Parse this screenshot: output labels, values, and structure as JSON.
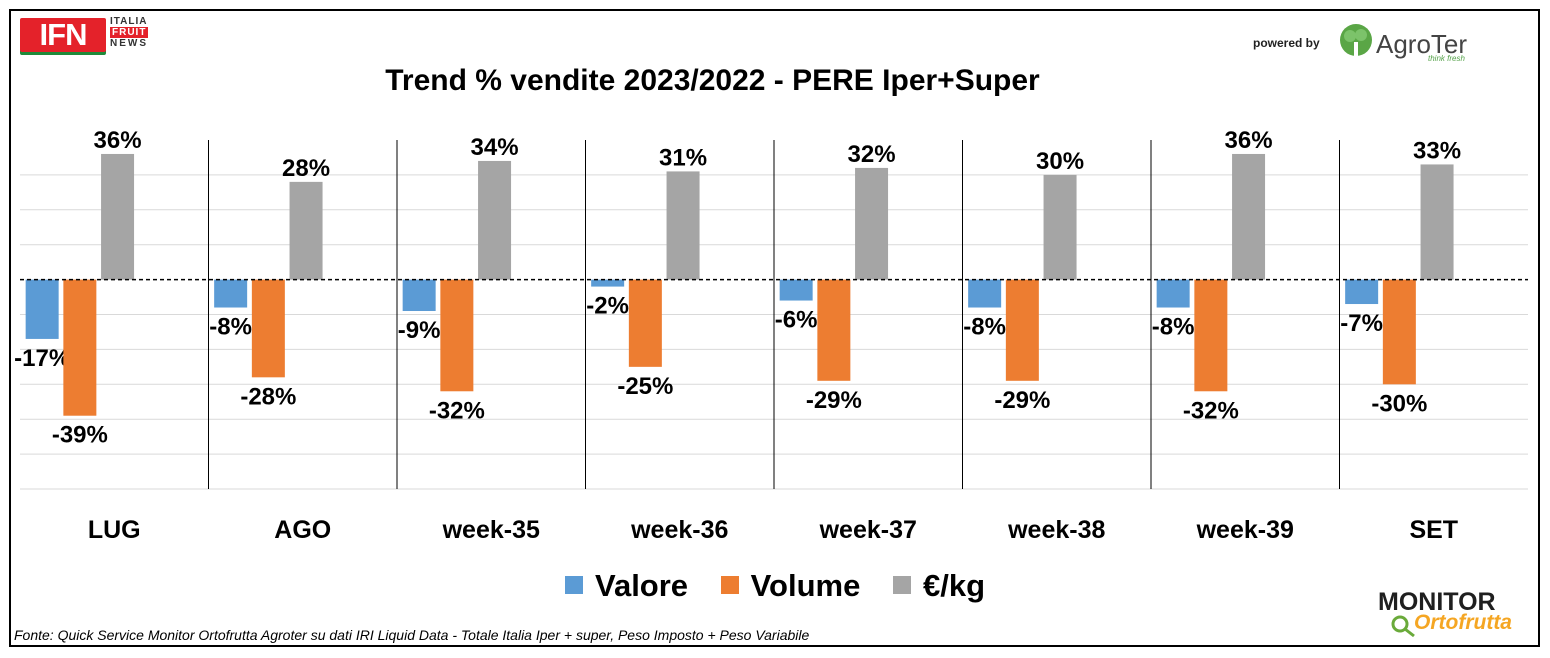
{
  "branding": {
    "ifn_mark": "IFN",
    "ifn_words": [
      "ITALIA",
      "FRUIT",
      "NEWS"
    ],
    "powered_by": "powered by",
    "agroter_name": "AgroTer",
    "agroter_tagline": "think fresh",
    "monitor_top": "MONITOR",
    "monitor_bottom": "Ortofrutta"
  },
  "footer": "Fonte: Quick Service Monitor Ortofrutta Agroter su dati IRI Liquid Data - Totale Italia Iper + super, Peso Imposto + Peso Variabile",
  "colors": {
    "valore": "#5b9bd5",
    "volume": "#ed7d31",
    "euro_kg": "#a5a5a5"
  },
  "chart_data": {
    "type": "bar",
    "title": "Trend % vendite 2023/2022 - PERE Iper+Super",
    "categories": [
      "LUG",
      "AGO",
      "week-35",
      "week-36",
      "week-37",
      "week-38",
      "week-39",
      "SET"
    ],
    "series": [
      {
        "name": "Valore",
        "values": [
          -17,
          -8,
          -9,
          -2,
          -6,
          -8,
          -8,
          -7
        ]
      },
      {
        "name": "Volume",
        "values": [
          -39,
          -28,
          -32,
          -25,
          -29,
          -29,
          -32,
          -30
        ]
      },
      {
        "name": "€/kg",
        "values": [
          36,
          28,
          34,
          31,
          32,
          30,
          36,
          33
        ]
      }
    ],
    "data_labels": [
      [
        "-17%",
        "-8%",
        "-9%",
        "-2%",
        "-6%",
        "-8%",
        "-8%",
        "-7%"
      ],
      [
        "-39%",
        "-28%",
        "-32%",
        "-25%",
        "-29%",
        "-29%",
        "-32%",
        "-30%"
      ],
      [
        "36%",
        "28%",
        "34%",
        "31%",
        "32%",
        "30%",
        "36%",
        "33%"
      ]
    ],
    "ylim": [
      -60,
      40
    ],
    "grid": true,
    "legend": "bottom"
  }
}
